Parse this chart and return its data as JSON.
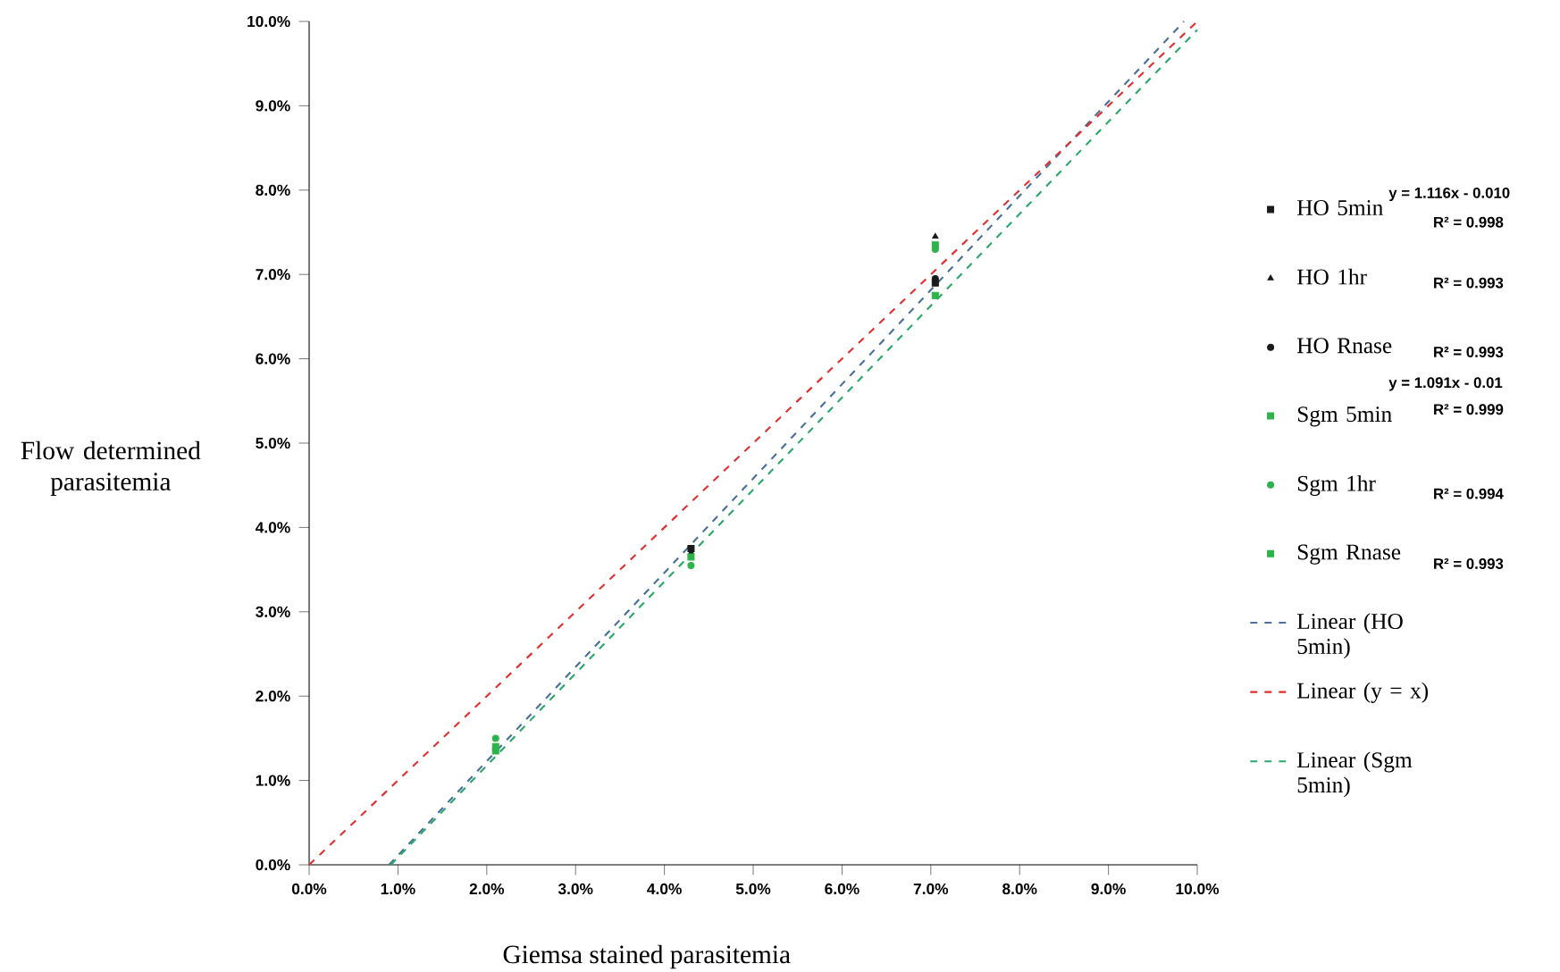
{
  "chart_data": {
    "type": "scatter",
    "xlabel": "Giemsa stained parasitemia",
    "ylabel": "Flow determined parasitemia",
    "xlim": [
      0,
      10
    ],
    "ylim": [
      0,
      10
    ],
    "xticks": [
      {
        "value": 0,
        "label": "0.0%"
      },
      {
        "value": 1,
        "label": "1.0%"
      },
      {
        "value": 2,
        "label": "2.0%"
      },
      {
        "value": 3,
        "label": "3.0%"
      },
      {
        "value": 4,
        "label": "4.0%"
      },
      {
        "value": 5,
        "label": "5.0%"
      },
      {
        "value": 6,
        "label": "6.0%"
      },
      {
        "value": 7,
        "label": "7.0%"
      },
      {
        "value": 8,
        "label": "8.0%"
      },
      {
        "value": 9,
        "label": "9.0%"
      },
      {
        "value": 10,
        "label": "10.0%"
      }
    ],
    "yticks": [
      {
        "value": 0,
        "label": "0.0%"
      },
      {
        "value": 1,
        "label": "1.0%"
      },
      {
        "value": 2,
        "label": "2.0%"
      },
      {
        "value": 3,
        "label": "3.0%"
      },
      {
        "value": 4,
        "label": "4.0%"
      },
      {
        "value": 5,
        "label": "5.0%"
      },
      {
        "value": 6,
        "label": "6.0%"
      },
      {
        "value": 7,
        "label": "7.0%"
      },
      {
        "value": 8,
        "label": "8.0%"
      },
      {
        "value": 9,
        "label": "9.0%"
      },
      {
        "value": 10,
        "label": "10.0%"
      }
    ],
    "legend": "right",
    "series": [
      {
        "name": "HO 5min",
        "marker": "square",
        "color": "#1a1a1a",
        "x": [
          null,
          4.3,
          7.05
        ],
        "values": [
          null,
          3.75,
          6.9
        ]
      },
      {
        "name": "HO 1hr",
        "marker": "triangle",
        "color": "#1a1a1a",
        "x": [
          null,
          4.3,
          7.05
        ],
        "values": [
          null,
          3.7,
          7.45
        ]
      },
      {
        "name": "HO Rnase",
        "marker": "circle",
        "color": "#1a1a1a",
        "x": [
          null,
          null,
          7.05
        ],
        "values": [
          null,
          null,
          6.95
        ]
      },
      {
        "name": "Sgm 5min",
        "marker": "square",
        "color": "#2db34a",
        "x": [
          2.1,
          4.3,
          7.05
        ],
        "values": [
          1.35,
          null,
          6.75
        ]
      },
      {
        "name": "Sgm 1hr",
        "marker": "circle",
        "color": "#2db34a",
        "x": [
          2.1,
          4.3,
          7.05
        ],
        "values": [
          1.5,
          3.55,
          7.3
        ]
      },
      {
        "name": "Sgm Rnase",
        "marker": "square",
        "color": "#2db34a",
        "x": [
          2.1,
          4.3,
          7.05
        ],
        "values": [
          1.4,
          3.65,
          7.35
        ]
      },
      {
        "name": "Linear (HO 5min)",
        "type": "line",
        "line_style": "dashed",
        "color": "#4a6f9c",
        "x": [
          0.9,
          9.85
        ],
        "values": [
          0,
          10
        ]
      },
      {
        "name": "Linear (y = x)",
        "type": "line",
        "line_style": "dashed",
        "color": "#e03030",
        "x": [
          0,
          10
        ],
        "values": [
          0,
          10
        ]
      },
      {
        "name": "Linear (Sgm 5min)",
        "type": "line",
        "line_style": "dashed",
        "color": "#2aa86a",
        "x": [
          0.92,
          10
        ],
        "values": [
          0,
          9.9
        ]
      }
    ],
    "annotations": [
      "y = 1.116x - 0.010",
      "R² = 0.998",
      "R² = 0.993",
      "R² = 0.993",
      "y = 1.091x - 0.01",
      "R² = 0.999",
      "R² = 0.994",
      "R² = 0.993"
    ]
  }
}
